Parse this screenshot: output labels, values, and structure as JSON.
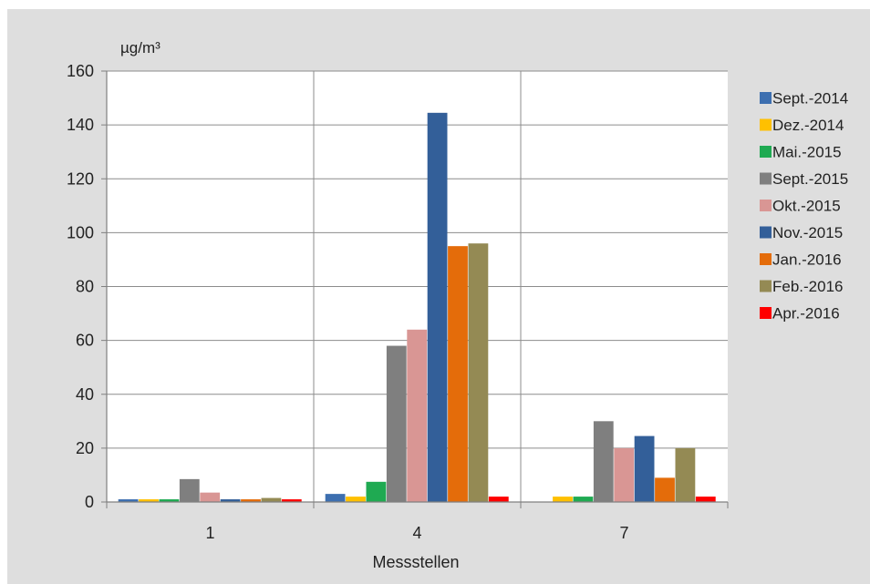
{
  "chart_data": {
    "type": "bar",
    "unit_label": "µg/m³",
    "xlabel": "Messstellen",
    "ylabel": "",
    "ylim": [
      0,
      160
    ],
    "yticks": [
      0,
      20,
      40,
      60,
      80,
      100,
      120,
      140,
      160
    ],
    "categories": [
      "1",
      "4",
      "7"
    ],
    "grid": true,
    "legend_position": "right",
    "series": [
      {
        "name": "Sept.-2014",
        "color": "#3d6fb0",
        "values": [
          1,
          3,
          0
        ]
      },
      {
        "name": "Dez.-2014",
        "color": "#ffc000",
        "values": [
          1,
          2,
          2
        ]
      },
      {
        "name": "Mai.-2015",
        "color": "#1faa52",
        "values": [
          1,
          7.5,
          2
        ]
      },
      {
        "name": "Sept.-2015",
        "color": "#7f7f7f",
        "values": [
          8.5,
          58,
          30
        ]
      },
      {
        "name": "Okt.-2015",
        "color": "#d99694",
        "values": [
          3.5,
          64,
          20
        ]
      },
      {
        "name": "Nov.-2015",
        "color": "#335f99",
        "values": [
          1,
          144.5,
          24.5
        ]
      },
      {
        "name": "Jan.-2016",
        "color": "#e46c0a",
        "values": [
          1,
          95,
          9
        ]
      },
      {
        "name": "Feb.-2016",
        "color": "#948a54",
        "values": [
          1.5,
          96,
          20
        ]
      },
      {
        "name": "Apr.-2016",
        "color": "#ff0000",
        "values": [
          1,
          2,
          2
        ]
      }
    ]
  }
}
